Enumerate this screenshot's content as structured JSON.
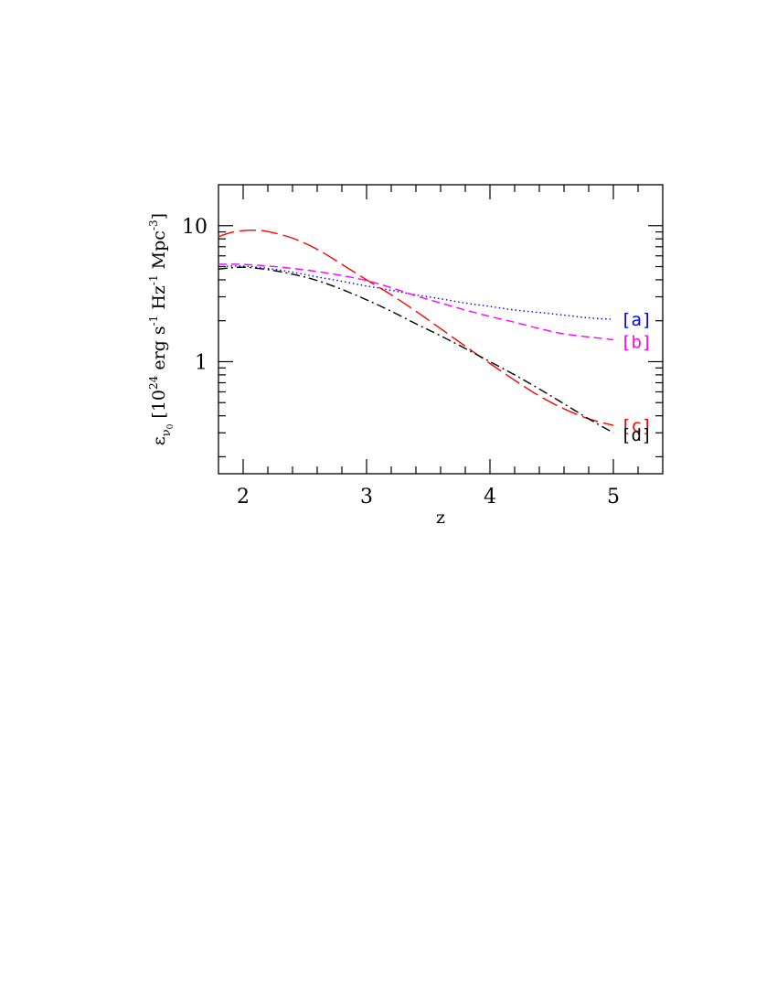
{
  "chart_data": {
    "type": "line",
    "xlabel": "z",
    "ylabel": {
      "symbol": "ε",
      "subscript": "ν",
      "subsubscript": "0",
      "prefix": "[10",
      "power": "24",
      "mid1": " erg s",
      "m1a": "-1",
      "mid2": " Hz",
      "m1b": "-1",
      "mid3": " Mpc",
      "m3": "-3",
      "suffix": "]"
    },
    "x_ticks": [
      "2",
      "3",
      "4",
      "5"
    ],
    "y_ticks": [
      "1",
      "10"
    ],
    "xlim": [
      1.8,
      5.4
    ],
    "ylim": [
      0.15,
      20
    ],
    "yscale": "log",
    "grid": false,
    "series": [
      {
        "label": "[a]",
        "color": "#0000ff",
        "dash": "dotted",
        "x": [
          1.8,
          2.0,
          2.2,
          2.4,
          2.6,
          2.8,
          3.0,
          3.2,
          3.4,
          3.6,
          3.8,
          4.0,
          4.2,
          4.4,
          4.6,
          4.8,
          5.0
        ],
        "y": [
          5.0,
          5.05,
          4.85,
          4.55,
          4.2,
          3.9,
          3.6,
          3.35,
          3.1,
          2.9,
          2.7,
          2.55,
          2.4,
          2.3,
          2.2,
          2.1,
          2.05
        ]
      },
      {
        "label": "[b]",
        "color": "#ff00ff",
        "dash": "short-dash",
        "x": [
          1.8,
          2.0,
          2.2,
          2.4,
          2.6,
          2.8,
          3.0,
          3.2,
          3.4,
          3.6,
          3.8,
          4.0,
          4.2,
          4.4,
          4.6,
          4.8,
          5.0
        ],
        "y": [
          5.2,
          5.2,
          5.05,
          4.85,
          4.6,
          4.3,
          3.95,
          3.5,
          3.05,
          2.7,
          2.4,
          2.15,
          1.95,
          1.75,
          1.6,
          1.52,
          1.45
        ]
      },
      {
        "label": "[c]",
        "color": "#ff0000",
        "dash": "long-dash",
        "x": [
          1.8,
          1.9,
          2.0,
          2.1,
          2.2,
          2.4,
          2.6,
          2.8,
          3.0,
          3.2,
          3.4,
          3.6,
          3.8,
          4.0,
          4.2,
          4.4,
          4.6,
          4.8,
          5.0
        ],
        "y": [
          8.3,
          8.9,
          9.2,
          9.25,
          9.05,
          8.1,
          6.7,
          5.2,
          4.0,
          3.1,
          2.35,
          1.75,
          1.3,
          0.97,
          0.73,
          0.56,
          0.45,
          0.38,
          0.34
        ]
      },
      {
        "label": "[d]",
        "color": "#000000",
        "dash": "dash-dot",
        "x": [
          1.8,
          2.0,
          2.2,
          2.4,
          2.6,
          2.8,
          3.0,
          3.2,
          3.4,
          3.6,
          3.8,
          4.0,
          4.2,
          4.4,
          4.6,
          4.8,
          5.0
        ],
        "y": [
          4.8,
          4.95,
          4.75,
          4.4,
          3.95,
          3.4,
          2.85,
          2.35,
          1.9,
          1.55,
          1.25,
          1.0,
          0.8,
          0.63,
          0.49,
          0.38,
          0.3
        ]
      }
    ]
  }
}
